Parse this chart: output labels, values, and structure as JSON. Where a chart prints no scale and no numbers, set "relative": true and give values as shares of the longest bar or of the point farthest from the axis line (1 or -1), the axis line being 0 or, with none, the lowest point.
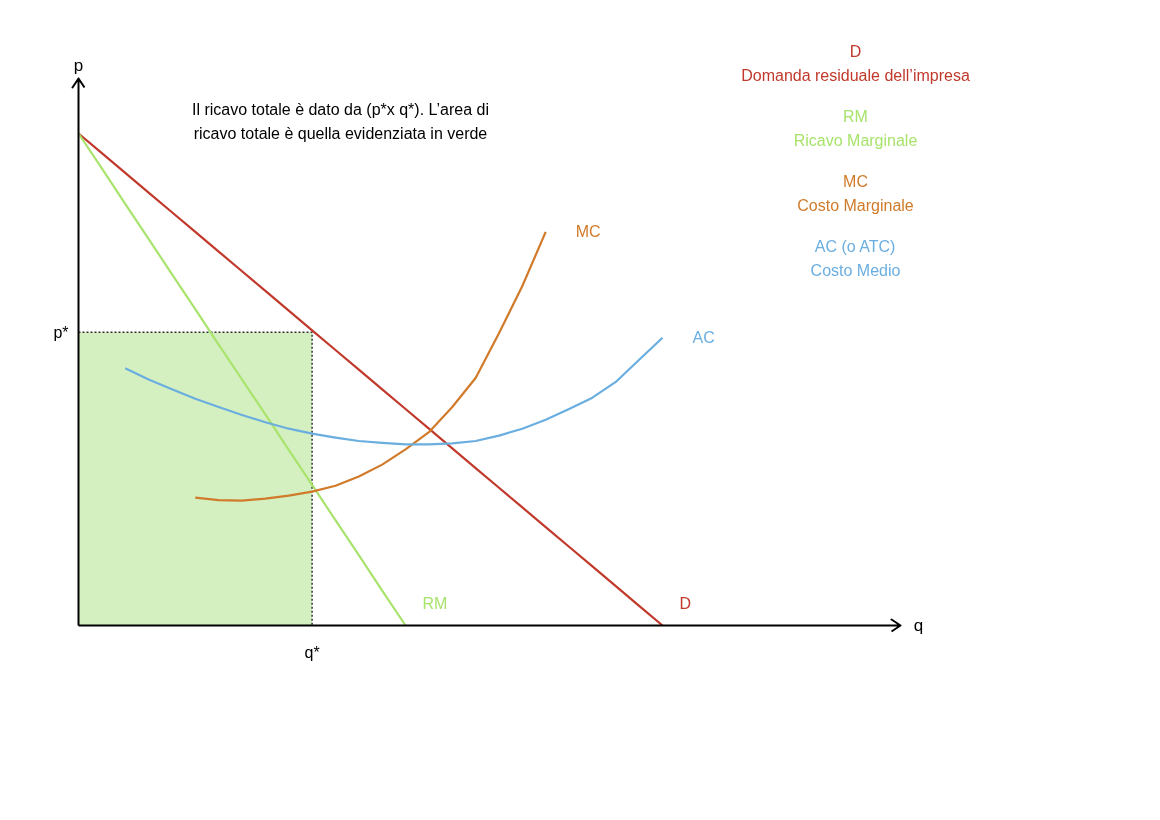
{
  "chart_data": {
    "type": "line",
    "relative": true,
    "ylabel": "p",
    "grid": false,
    "categories": [
      null,
      null,
      null,
      null,
      null,
      null,
      null,
      null,
      null,
      null,
      null,
      null,
      null,
      null,
      null,
      null,
      null,
      null,
      null,
      null,
      null,
      null,
      null,
      null,
      null,
      null
    ],
    "series": [
      {
        "name": "D",
        "color": "#c0392b",
        "values": [
          1,
          0.96,
          0.92,
          0.88,
          0.84,
          0.8,
          0.76,
          0.72,
          0.68,
          0.64,
          0.6,
          0.56,
          0.52,
          0.48,
          0.44,
          0.4,
          0.36,
          0.32,
          0.28,
          0.24,
          0.2,
          0.16,
          0.12,
          0.08,
          0.04,
          0
        ]
      },
      {
        "name": "RM",
        "color": "#a8e36c",
        "values": [
          1,
          0.929,
          0.857,
          0.786,
          0.714,
          0.643,
          0.571,
          0.5,
          0.429,
          0.357,
          0.286,
          0.214,
          0.143,
          0.071,
          0,
          null,
          null,
          null,
          null,
          null,
          null,
          null,
          null,
          null,
          null,
          null
        ]
      },
      {
        "name": "MC",
        "color": "#d07a2a",
        "values": [
          null,
          null,
          null,
          null,
          null,
          0.26,
          0.255,
          0.254,
          0.258,
          0.264,
          0.272,
          0.284,
          0.303,
          0.327,
          0.358,
          0.393,
          0.444,
          0.503,
          0.594,
          0.69,
          0.8,
          null,
          null,
          null,
          null,
          null
        ]
      },
      {
        "name": "AC",
        "color": "#6aaee0",
        "values": [
          null,
          null,
          0.523,
          0.5,
          0.48,
          0.461,
          0.444,
          0.428,
          0.413,
          0.4,
          0.39,
          0.382,
          0.375,
          0.371,
          0.368,
          0.368,
          0.37,
          0.375,
          0.386,
          0.4,
          0.418,
          0.44,
          0.463,
          0.495,
          0.54,
          0.585
        ]
      },
      {
        "type": "area",
        "color": "#d5f0c0",
        "line_style": "dotted",
        "values": [
          0.596,
          0.596,
          0.596,
          0.596,
          0.596,
          0.596,
          0.596,
          0.596,
          0.596,
          0.596,
          0.596,
          null,
          null,
          null,
          null,
          null,
          null,
          null,
          null,
          null,
          null,
          null,
          null,
          null,
          null,
          null
        ]
      }
    ],
    "annotations": [
      "Il ricavo totale è dato da (p*x q*). L’area di\nricavo totale è quella evidenziata in verde",
      "D\nDomanda residuale dell’impresa",
      "RM\nRicavo Marginale",
      "MC\nCosto Marginale",
      "AC (o ATC)\nCosto Medio",
      "p*",
      "q*",
      "q"
    ]
  }
}
